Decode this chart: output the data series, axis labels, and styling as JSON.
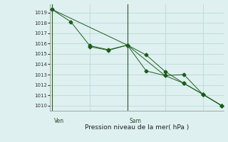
{
  "xlabel": "Pression niveau de la mer( hPa )",
  "bg_color": "#dff0f0",
  "grid_color": "#c0dede",
  "line_color": "#1a5c1a",
  "ylim": [
    1009.5,
    1019.8
  ],
  "yticks": [
    1010,
    1011,
    1012,
    1013,
    1014,
    1015,
    1016,
    1017,
    1018,
    1019
  ],
  "xlim": [
    -0.1,
    9.1
  ],
  "vline_x": [
    0,
    4
  ],
  "vline_labels": [
    "Ven",
    "Sam"
  ],
  "series1_x": [
    0,
    1,
    2,
    3,
    4,
    5,
    6,
    7,
    8,
    9
  ],
  "series1_y": [
    1019.3,
    1018.1,
    1015.8,
    1015.4,
    1015.85,
    1014.9,
    1013.3,
    1012.15,
    1011.1,
    1010.0
  ],
  "series2_x": [
    2,
    3,
    4,
    5,
    6,
    7,
    8,
    9
  ],
  "series2_y": [
    1015.7,
    1015.35,
    1015.85,
    1013.35,
    1012.9,
    1013.0,
    1011.1,
    1010.0
  ],
  "series3_x": [
    0,
    4,
    6,
    7,
    8,
    9
  ],
  "series3_y": [
    1019.3,
    1015.85,
    1012.9,
    1012.15,
    1011.1,
    1010.0
  ]
}
